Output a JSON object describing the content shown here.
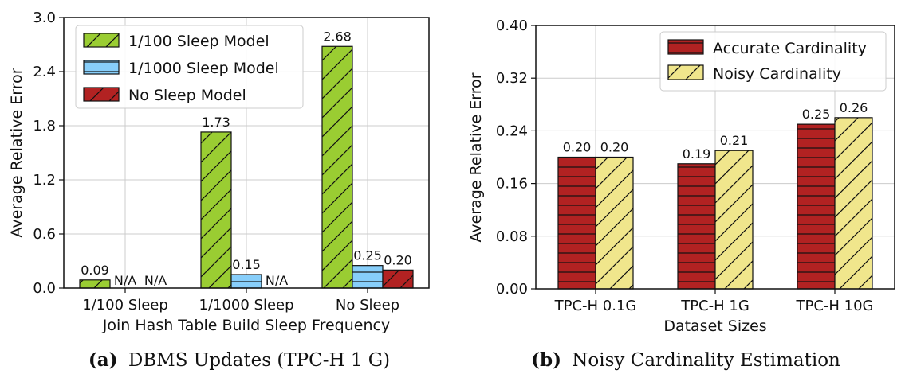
{
  "chart_data": [
    {
      "type": "bar",
      "caption_label": "(a)",
      "caption_text": "DBMS Updates (TPC-H 1 G)",
      "xlabel": "Join Hash Table Build Sleep Frequency",
      "ylabel": "Average Relative Error",
      "categories": [
        "1/100 Sleep",
        "1/1000 Sleep",
        "No Sleep"
      ],
      "yticks": [
        "0.0",
        "0.6",
        "1.2",
        "1.8",
        "2.4",
        "3.0"
      ],
      "ylim": [
        0,
        3.0
      ],
      "grid": true,
      "legend_position": "top-left",
      "series": [
        {
          "name": "1/100 Sleep Model",
          "color": "#9acd32",
          "hatch": "diagonal",
          "values": [
            0.09,
            1.73,
            2.68
          ],
          "labels": [
            "0.09",
            "1.73",
            "2.68"
          ]
        },
        {
          "name": "1/1000 Sleep Model",
          "color": "#87cefa",
          "hatch": "horizontal",
          "values": [
            null,
            0.15,
            0.25
          ],
          "labels": [
            "N/A",
            "0.15",
            "0.25"
          ]
        },
        {
          "name": "No Sleep Model",
          "color": "#b22222",
          "hatch": "diagonal",
          "values": [
            null,
            null,
            0.2
          ],
          "labels": [
            "N/A",
            "N/A",
            "0.20"
          ]
        }
      ]
    },
    {
      "type": "bar",
      "caption_label": "(b)",
      "caption_text": "Noisy Cardinality Estimation",
      "xlabel": "Dataset Sizes",
      "ylabel": "Average Relative Error",
      "categories": [
        "TPC-H 0.1G",
        "TPC-H 1G",
        "TPC-H 10G"
      ],
      "yticks": [
        "0.00",
        "0.08",
        "0.16",
        "0.24",
        "0.32",
        "0.40"
      ],
      "ylim": [
        0,
        0.4
      ],
      "grid": true,
      "legend_position": "top-right",
      "series": [
        {
          "name": "Accurate Cardinality",
          "color": "#b22222",
          "hatch": "horizontal",
          "values": [
            0.2,
            0.19,
            0.25
          ],
          "labels": [
            "0.20",
            "0.19",
            "0.25"
          ]
        },
        {
          "name": "Noisy Cardinality",
          "color": "#f0e68c",
          "hatch": "diagonal",
          "values": [
            0.2,
            0.21,
            0.26
          ],
          "labels": [
            "0.20",
            "0.21",
            "0.26"
          ]
        }
      ]
    }
  ]
}
